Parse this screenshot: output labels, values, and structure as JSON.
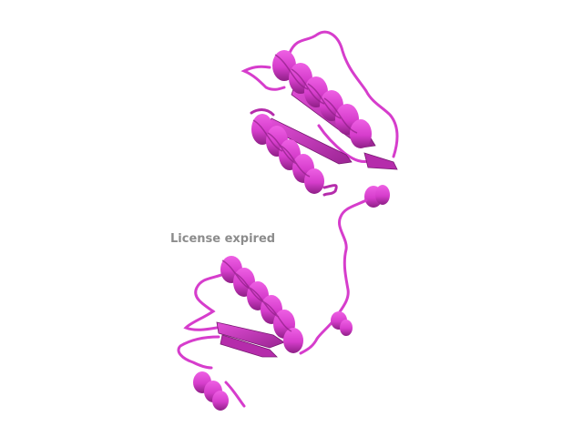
{
  "viewer": {
    "watermark_text": "License expired",
    "subject": "protein-cartoon-ribbon"
  },
  "colors": {
    "background": "#ffffff",
    "ribbon": "#d63dcc",
    "ribbon_light": "#ee60e4",
    "ribbon_dark": "#8e1f86",
    "watermark": "#8c8c8c"
  }
}
